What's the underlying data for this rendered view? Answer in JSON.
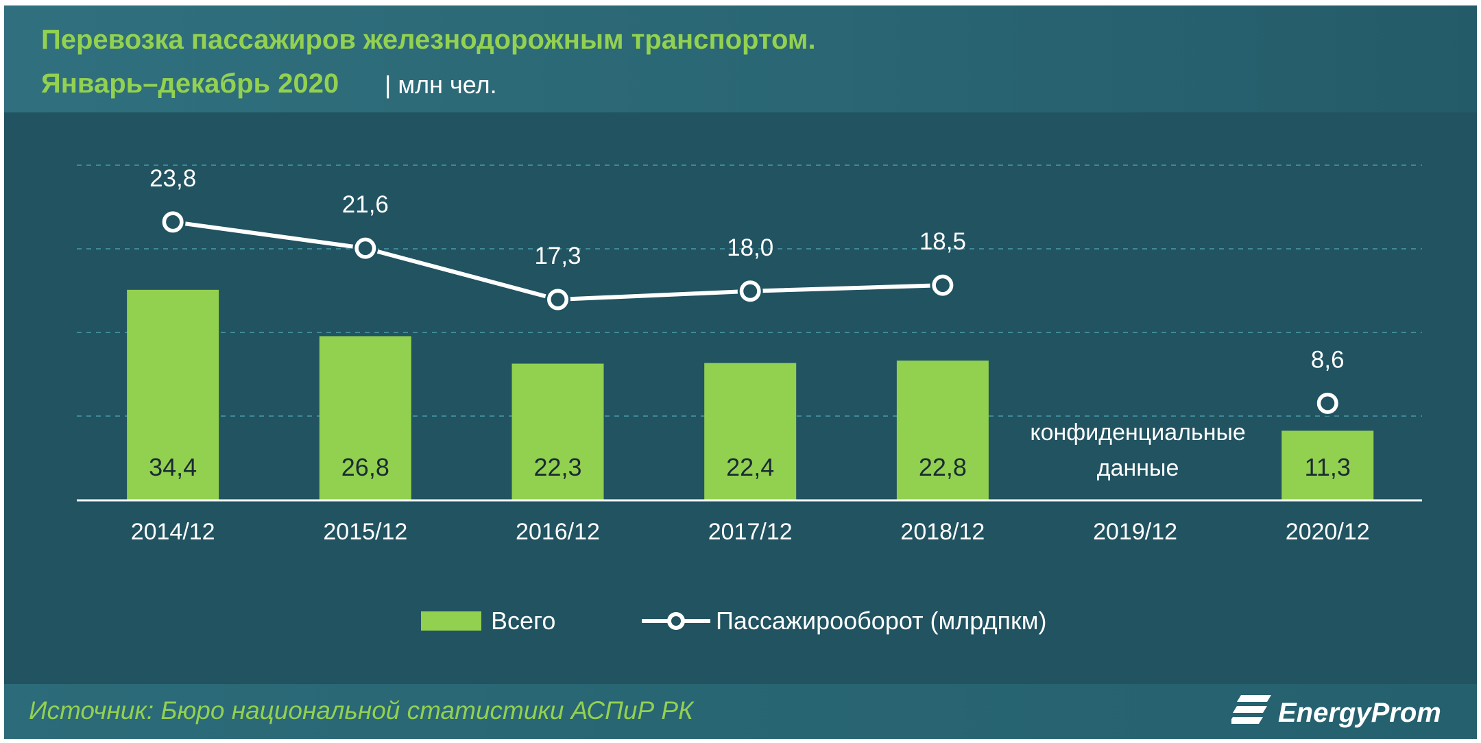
{
  "title_line1": "Перевозка пассажиров железнодорожным транспортом.",
  "title_line2": "Январь–декабрь 2020",
  "subtitle": "| млн чел.",
  "source": "Источник: Бюро национальной  статистики АСПиР РК",
  "logo_text": "EnergyProm",
  "colors": {
    "bar": "#92d050",
    "line": "#ffffff",
    "background": "#215361",
    "accent_text": "#93d150"
  },
  "chart_data": {
    "type": "bar",
    "categories": [
      "2014/12",
      "2015/12",
      "2016/12",
      "2017/12",
      "2018/12",
      "2019/12",
      "2020/12"
    ],
    "series": [
      {
        "name": "Всего",
        "type": "bar",
        "values": [
          34.4,
          26.8,
          22.3,
          22.4,
          22.8,
          null,
          11.3
        ],
        "labels": [
          "34,4",
          "26,8",
          "22,3",
          "22,4",
          "22,8",
          "",
          "11,3"
        ]
      },
      {
        "name": "Пассажирооборот (млрдпкм)",
        "type": "line",
        "values": [
          23.8,
          21.6,
          17.3,
          18.0,
          18.5,
          null,
          8.6
        ],
        "labels": [
          "23,8",
          "21,6",
          "17,3",
          "18,0",
          "18,5",
          "",
          "8,6"
        ]
      }
    ],
    "annotation": [
      "конфиденциальные",
      "данные"
    ],
    "annotation_category": "2019/12",
    "grid": true,
    "legend_position": "bottom"
  }
}
